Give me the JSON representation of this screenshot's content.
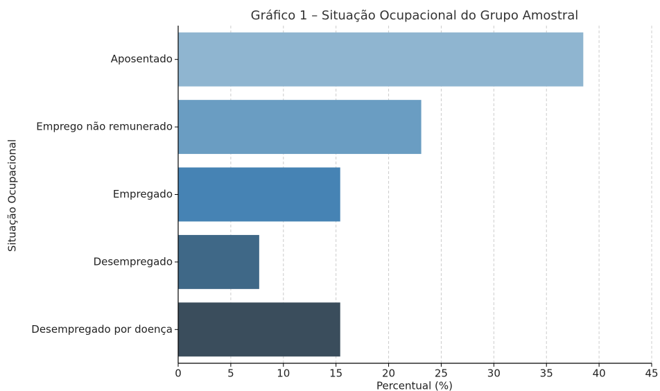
{
  "chart_data": {
    "type": "hbar",
    "title": "Gráfico 1 – Situação Ocupacional do Grupo Amostral",
    "x_label": "Percentual (%)",
    "y_label": "Situação Ocupacional",
    "categories": [
      "Aposentado",
      "Emprego não remunerado",
      "Empregado",
      "Desempregado",
      "Desempregado por doença"
    ],
    "values": [
      38.5,
      23.1,
      15.4,
      7.7,
      15.4
    ],
    "colors": [
      "#8fb5d0",
      "#6a9dc2",
      "#4683b4",
      "#3f6887",
      "#3a4d5c"
    ],
    "xlim": [
      0,
      45
    ],
    "xticks": [
      0,
      5,
      10,
      15,
      20,
      25,
      30,
      35,
      40,
      45
    ],
    "grid": true
  }
}
